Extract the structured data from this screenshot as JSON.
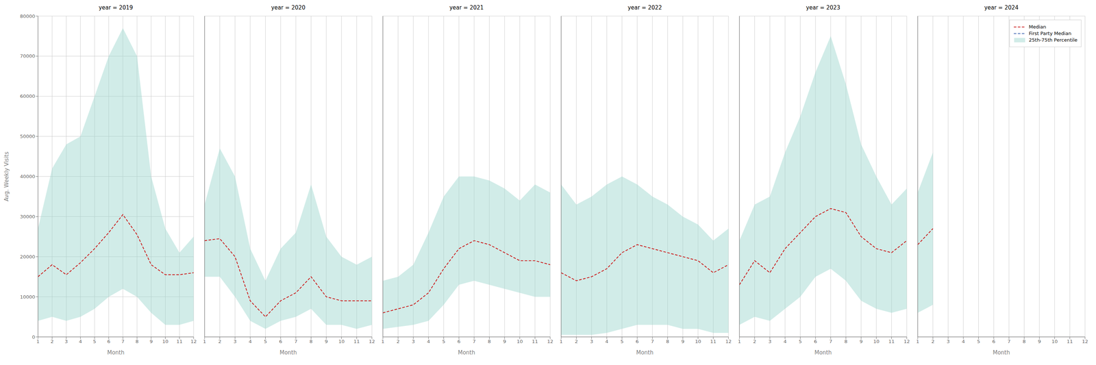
{
  "chart_data": [
    {
      "type": "line",
      "title": "year = 2019",
      "xlabel": "Month",
      "ylabel": "Avg. Weekly Visits",
      "x": [
        1,
        2,
        3,
        4,
        5,
        6,
        7,
        8,
        9,
        10,
        11,
        12
      ],
      "xlim": [
        1,
        12
      ],
      "xticks": [
        1,
        2,
        3,
        4,
        5,
        6,
        7,
        8,
        9,
        10,
        11,
        12
      ],
      "ylim": [
        0,
        80000
      ],
      "yticks": [
        0,
        10000,
        20000,
        30000,
        40000,
        50000,
        60000,
        70000,
        80000
      ],
      "grid": true,
      "series": [
        {
          "name": "Median",
          "color": "#cc2222",
          "line_style": "dashed",
          "values": [
            15000,
            18000,
            15500,
            18500,
            22000,
            26000,
            30500,
            25500,
            18000,
            15500,
            15500,
            16000
          ]
        },
        {
          "name": "25th-75th Percentile",
          "type": "band",
          "color": "#99d4cc",
          "lower": [
            4000,
            5000,
            4000,
            5000,
            7000,
            10000,
            12000,
            10000,
            6000,
            3000,
            3000,
            4000
          ],
          "upper": [
            27000,
            42000,
            48000,
            50000,
            60000,
            70000,
            77000,
            70000,
            40000,
            27000,
            21000,
            25000
          ]
        }
      ]
    },
    {
      "type": "line",
      "title": "year = 2020",
      "xlabel": "Month",
      "tick_labels": "x",
      "x": [
        1,
        2,
        3,
        4,
        5,
        6,
        7,
        8,
        9,
        10,
        11,
        12
      ],
      "xlim": [
        1,
        12
      ],
      "xticks": [
        1,
        2,
        3,
        4,
        5,
        6,
        7,
        8,
        9,
        10,
        11,
        12
      ],
      "ylim": [
        0,
        80000
      ],
      "yticks": [
        0,
        10000,
        20000,
        30000,
        40000,
        50000,
        60000,
        70000,
        80000
      ],
      "grid": true,
      "series": [
        {
          "name": "Median",
          "color": "#cc2222",
          "line_style": "dashed",
          "values": [
            24000,
            24500,
            20000,
            9000,
            5000,
            9000,
            11000,
            15000,
            10000,
            9000,
            9000,
            9000
          ]
        },
        {
          "name": "25th-75th Percentile",
          "type": "band",
          "color": "#99d4cc",
          "lower": [
            15000,
            15000,
            10000,
            4000,
            2000,
            4000,
            5000,
            7000,
            3000,
            3000,
            2000,
            3000
          ],
          "upper": [
            33000,
            47000,
            40000,
            22000,
            14000,
            22000,
            26000,
            38000,
            25000,
            20000,
            18000,
            20000
          ]
        }
      ]
    },
    {
      "type": "line",
      "title": "year = 2021",
      "xlabel": "Month",
      "tick_labels": "x",
      "x": [
        1,
        2,
        3,
        4,
        5,
        6,
        7,
        8,
        9,
        10,
        11,
        12
      ],
      "xlim": [
        1,
        12
      ],
      "xticks": [
        1,
        2,
        3,
        4,
        5,
        6,
        7,
        8,
        9,
        10,
        11,
        12
      ],
      "ylim": [
        0,
        80000
      ],
      "yticks": [
        0,
        10000,
        20000,
        30000,
        40000,
        50000,
        60000,
        70000,
        80000
      ],
      "grid": true,
      "series": [
        {
          "name": "Median",
          "color": "#cc2222",
          "line_style": "dashed",
          "values": [
            6000,
            7000,
            8000,
            11000,
            17000,
            22000,
            24000,
            23000,
            21000,
            19000,
            19000,
            18000
          ]
        },
        {
          "name": "25th-75th Percentile",
          "type": "band",
          "color": "#99d4cc",
          "lower": [
            2000,
            2500,
            3000,
            4000,
            8000,
            13000,
            14000,
            13000,
            12000,
            11000,
            10000,
            10000
          ],
          "upper": [
            14000,
            15000,
            18000,
            26000,
            35000,
            40000,
            40000,
            39000,
            37000,
            34000,
            38000,
            36000
          ]
        }
      ]
    },
    {
      "type": "line",
      "title": "year = 2022",
      "xlabel": "Month",
      "tick_labels": "x",
      "x": [
        1,
        2,
        3,
        4,
        5,
        6,
        7,
        8,
        9,
        10,
        11,
        12
      ],
      "xlim": [
        1,
        12
      ],
      "xticks": [
        1,
        2,
        3,
        4,
        5,
        6,
        7,
        8,
        9,
        10,
        11,
        12
      ],
      "ylim": [
        0,
        80000
      ],
      "yticks": [
        0,
        10000,
        20000,
        30000,
        40000,
        50000,
        60000,
        70000,
        80000
      ],
      "grid": true,
      "series": [
        {
          "name": "Median",
          "color": "#cc2222",
          "line_style": "dashed",
          "values": [
            16000,
            14000,
            15000,
            17000,
            21000,
            23000,
            22000,
            21000,
            20000,
            19000,
            16000,
            18000
          ]
        },
        {
          "name": "25th-75th Percentile",
          "type": "band",
          "color": "#99d4cc",
          "lower": [
            500,
            500,
            500,
            1000,
            2000,
            3000,
            3000,
            3000,
            2000,
            2000,
            1000,
            1000
          ],
          "upper": [
            38000,
            33000,
            35000,
            38000,
            40000,
            38000,
            35000,
            33000,
            30000,
            28000,
            24000,
            27000
          ]
        }
      ]
    },
    {
      "type": "line",
      "title": "year = 2023",
      "xlabel": "Month",
      "tick_labels": "x",
      "x": [
        1,
        2,
        3,
        4,
        5,
        6,
        7,
        8,
        9,
        10,
        11,
        12
      ],
      "xlim": [
        1,
        12
      ],
      "xticks": [
        1,
        2,
        3,
        4,
        5,
        6,
        7,
        8,
        9,
        10,
        11,
        12
      ],
      "ylim": [
        0,
        80000
      ],
      "yticks": [
        0,
        10000,
        20000,
        30000,
        40000,
        50000,
        60000,
        70000,
        80000
      ],
      "grid": true,
      "series": [
        {
          "name": "Median",
          "color": "#cc2222",
          "line_style": "dashed",
          "values": [
            13000,
            19000,
            16000,
            22000,
            26000,
            30000,
            32000,
            31000,
            25000,
            22000,
            21000,
            24000
          ]
        },
        {
          "name": "25th-75th Percentile",
          "type": "band",
          "color": "#99d4cc",
          "lower": [
            3000,
            5000,
            4000,
            7000,
            10000,
            15000,
            17000,
            14000,
            9000,
            7000,
            6000,
            7000
          ],
          "upper": [
            24000,
            33000,
            35000,
            46000,
            55000,
            66000,
            75000,
            63000,
            48000,
            40000,
            33000,
            37000
          ]
        }
      ]
    },
    {
      "type": "line",
      "title": "year = 2024",
      "xlabel": "Month",
      "tick_labels": "x",
      "legend": "upper right",
      "x": [
        1,
        2
      ],
      "xlim": [
        1,
        12
      ],
      "xticks": [
        1,
        2,
        3,
        4,
        5,
        6,
        7,
        8,
        9,
        10,
        11,
        12
      ],
      "ylim": [
        0,
        80000
      ],
      "yticks": [
        0,
        10000,
        20000,
        30000,
        40000,
        50000,
        60000,
        70000,
        80000
      ],
      "grid": true,
      "series": [
        {
          "name": "Median",
          "color": "#cc2222",
          "line_style": "dashed",
          "values": [
            23000,
            27000
          ]
        },
        {
          "name": "First Party Median",
          "color": "#5577bb",
          "line_style": "dashed",
          "values": [
            null,
            null
          ]
        },
        {
          "name": "25th-75th Percentile",
          "type": "band",
          "color": "#99d4cc",
          "lower": [
            6000,
            8000
          ],
          "upper": [
            36000,
            46000
          ]
        }
      ]
    }
  ]
}
